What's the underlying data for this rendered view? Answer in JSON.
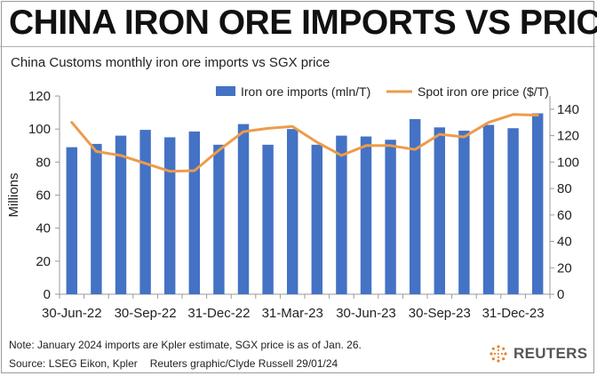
{
  "header": {
    "title": "CHINA IRON ORE IMPORTS VS PRICE",
    "subtitle": "China Customs monthly iron ore imports vs SGX price"
  },
  "footer": {
    "note": "Note: January 2024 imports are Kpler estimate, SGX price is as of Jan. 26.",
    "source": "Source: LSEG Eikon, Kpler",
    "credit": "Reuters graphic/Clyde Russell 29/01/24",
    "logo_text": "REUTERS"
  },
  "colors": {
    "bar": "#4472C4",
    "line": "#ED9B4A",
    "axis": "#9a9a9a",
    "text": "#222222"
  },
  "chart_data": {
    "type": "bar",
    "title": "CHINA IRON ORE IMPORTS VS PRICE",
    "categories": [
      "Jun-22",
      "Jul-22",
      "Aug-22",
      "Sep-22",
      "Oct-22",
      "Nov-22",
      "Dec-22",
      "Jan-23",
      "Feb-23",
      "Mar-23",
      "Apr-23",
      "May-23",
      "Jun-23",
      "Jul-23",
      "Aug-23",
      "Sep-23",
      "Oct-23",
      "Nov-23",
      "Dec-23",
      "Jan-24"
    ],
    "x_tick_labels": [
      "30-Jun-22",
      "30-Sep-22",
      "31-Dec-22",
      "31-Mar-23",
      "30-Jun-23",
      "30-Sep-23",
      "31-Dec-23"
    ],
    "x_tick_indices": [
      0,
      3,
      6,
      9,
      12,
      15,
      18
    ],
    "series": [
      {
        "name": "Iron ore imports (mln/T)",
        "type": "bar",
        "axis": "left",
        "values": [
          89,
          91,
          96,
          99.5,
          95,
          98.5,
          90.5,
          103,
          90.5,
          100,
          90.5,
          96,
          95.5,
          93.5,
          106,
          101,
          99,
          102.5,
          100.5,
          109.5
        ]
      },
      {
        "name": "Spot iron ore price ($/T)",
        "type": "line",
        "axis": "right",
        "values": [
          130,
          108,
          105,
          99,
          93,
          93.5,
          109,
          123,
          125.5,
          127,
          115,
          105,
          112.5,
          112.5,
          109.5,
          121,
          119,
          130,
          136,
          135.5
        ]
      }
    ],
    "ylabel": "Millions",
    "ylim": [
      0,
      120
    ],
    "yticks": [
      0,
      20,
      40,
      60,
      80,
      100,
      120
    ],
    "y2lim": [
      0,
      150
    ],
    "y2ticks": [
      0,
      20,
      40,
      60,
      80,
      100,
      120,
      140
    ],
    "legend_position": "top"
  }
}
